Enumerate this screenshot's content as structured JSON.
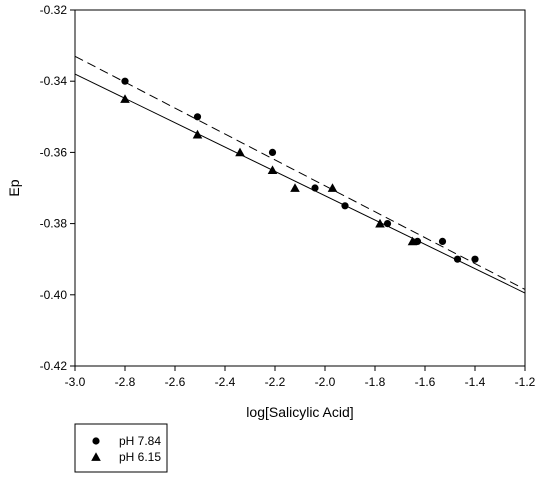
{
  "chart_data": {
    "type": "scatter",
    "xlabel": "log[Salicylic Acid]",
    "ylabel": "Ep",
    "xlim": [
      -3.0,
      -1.2
    ],
    "ylim": [
      -0.42,
      -0.32
    ],
    "xticks": [
      -3.0,
      -2.8,
      -2.6,
      -2.4,
      -2.2,
      -2.0,
      -1.8,
      -1.6,
      -1.4,
      -1.2
    ],
    "yticks": [
      -0.42,
      -0.4,
      -0.38,
      -0.36,
      -0.34,
      -0.32
    ],
    "xtick_labels": [
      "-3.0",
      "-2.8",
      "-2.6",
      "-2.4",
      "-2.2",
      "-2.0",
      "-1.8",
      "-1.6",
      "-1.4",
      "-1.2"
    ],
    "ytick_labels": [
      "-0.42",
      "-0.40",
      "-0.38",
      "-0.36",
      "-0.34",
      "-0.32"
    ],
    "grid": false,
    "legend_position": "bottom-left, below plot",
    "series": [
      {
        "name": "pH 7.84",
        "marker": "circle",
        "fit_line": "dashed",
        "color": "#000000",
        "x": [
          -2.8,
          -2.51,
          -2.21,
          -2.04,
          -1.92,
          -1.75,
          -1.63,
          -1.53,
          -1.47,
          -1.4
        ],
        "y": [
          -0.34,
          -0.35,
          -0.36,
          -0.37,
          -0.375,
          -0.38,
          -0.385,
          -0.385,
          -0.39,
          -0.39
        ],
        "fit": [
          [
            -3.0,
            -0.333
          ],
          [
            -1.2,
            -0.3985
          ]
        ]
      },
      {
        "name": "pH 6.15",
        "marker": "triangle",
        "fit_line": "solid",
        "color": "#000000",
        "x": [
          -2.8,
          -2.51,
          -2.34,
          -2.21,
          -2.12,
          -1.97,
          -1.78,
          -1.65
        ],
        "y": [
          -0.345,
          -0.355,
          -0.36,
          -0.365,
          -0.37,
          -0.37,
          -0.38,
          -0.385
        ],
        "fit": [
          [
            -3.0,
            -0.338
          ],
          [
            -1.2,
            -0.3995
          ]
        ]
      }
    ]
  }
}
